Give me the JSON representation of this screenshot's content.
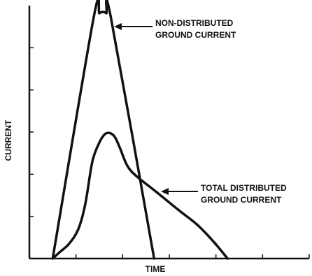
{
  "chart_data": {
    "type": "line",
    "xlabel": "TIME",
    "ylabel": "CURRENT",
    "xlim": [
      0,
      12.0
    ],
    "ylim": [
      0,
      6.0
    ],
    "grid": false,
    "series": [
      {
        "name": "NON-DISTRIBUTED GROUND CURRENT",
        "x": [
          1.0,
          2.75,
          3.0,
          3.15,
          3.3,
          3.5,
          5.35
        ],
        "y": [
          0.0,
          5.7,
          5.82,
          5.85,
          5.82,
          5.7,
          0.0
        ]
      },
      {
        "name": "TOTAL DISTRIBUTED GROUND CURRENT",
        "x": [
          1.0,
          1.3,
          1.7,
          2.1,
          2.4,
          2.7,
          3.0,
          3.2,
          3.35,
          3.55,
          3.7,
          3.9,
          4.2,
          4.6,
          5.4,
          6.4,
          7.2,
          7.9,
          8.5
        ],
        "y": [
          0.0,
          0.15,
          0.35,
          0.7,
          1.3,
          2.3,
          2.75,
          2.93,
          2.98,
          2.95,
          2.85,
          2.6,
          2.2,
          1.95,
          1.6,
          1.15,
          0.8,
          0.4,
          0.0
        ]
      }
    ],
    "annotations": [
      {
        "series": 0,
        "lines": [
          "NON-DISTRIBUTED",
          "GROUND CURRENT"
        ]
      },
      {
        "series": 1,
        "lines": [
          "TOTAL DISTRIBUTED",
          "GROUND CURRENT"
        ]
      }
    ]
  }
}
